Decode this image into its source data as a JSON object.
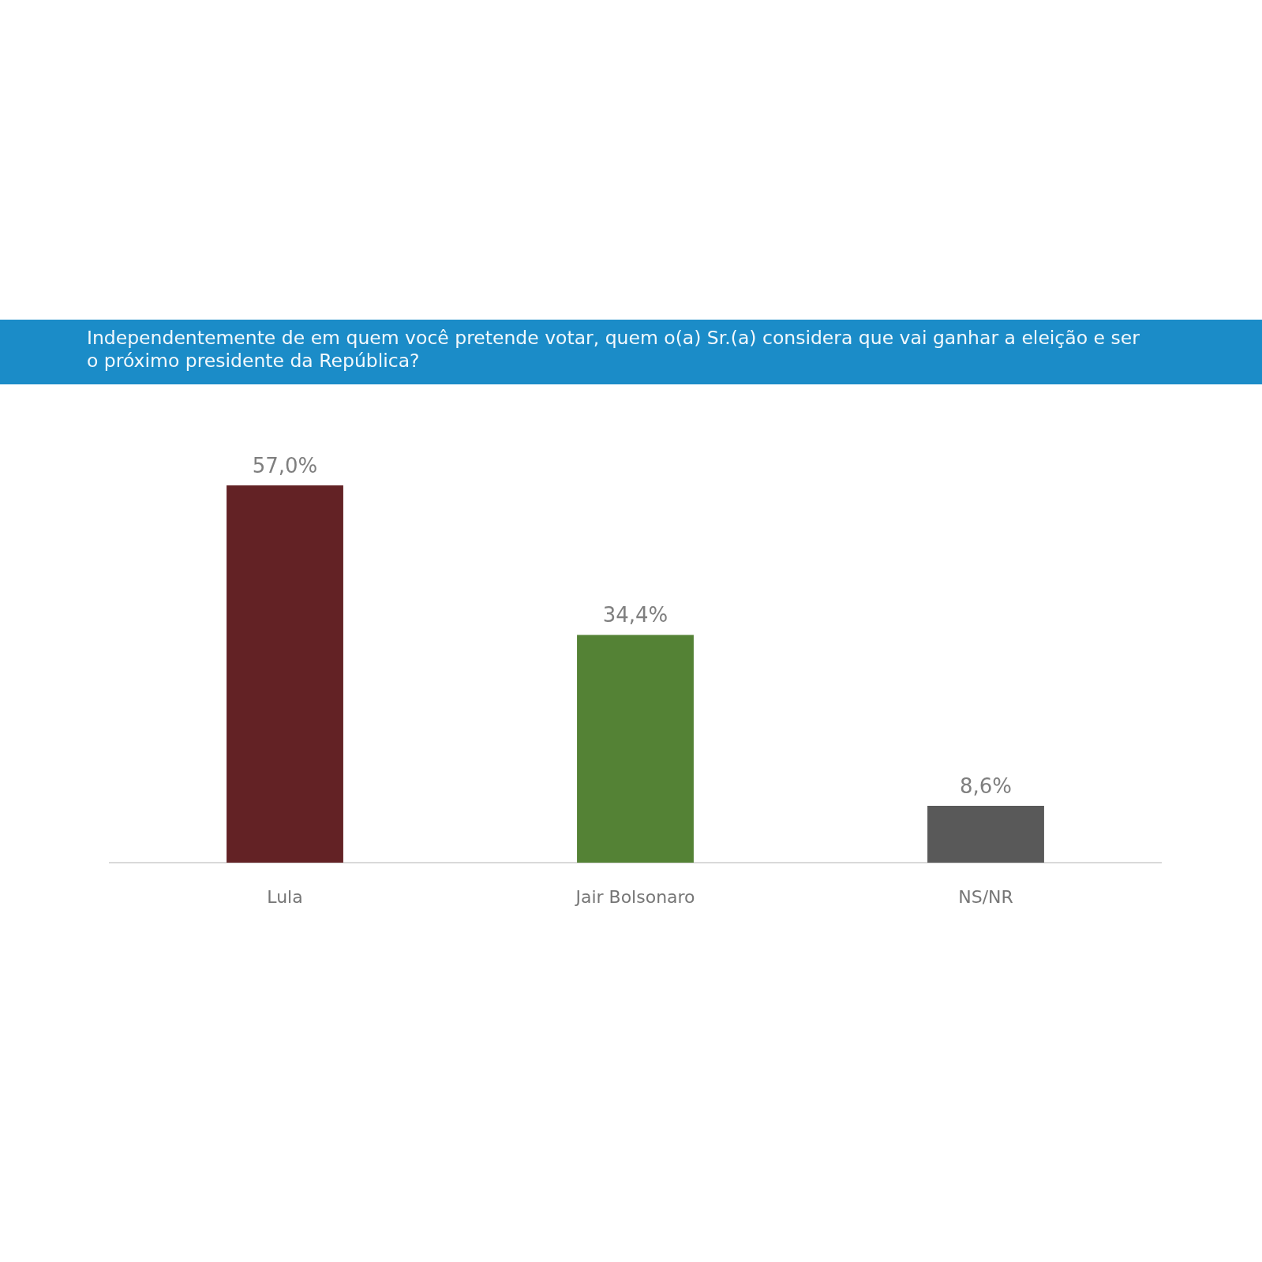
{
  "chart_data": {
    "type": "bar",
    "title": "Independentemente de em quem você pretende votar, quem o(a) Sr.(a) considera que vai ganhar a eleição e ser o próximo presidente da República?",
    "categories": [
      "Lula",
      "Jair Bolsonaro",
      "NS/NR"
    ],
    "values": [
      57.0,
      34.4,
      8.6
    ],
    "colors": [
      "#632225",
      "#548235",
      "#595959"
    ],
    "value_labels": [
      "57,0%",
      "34,4%",
      "8,6%"
    ],
    "tick_labels": "x"
  }
}
